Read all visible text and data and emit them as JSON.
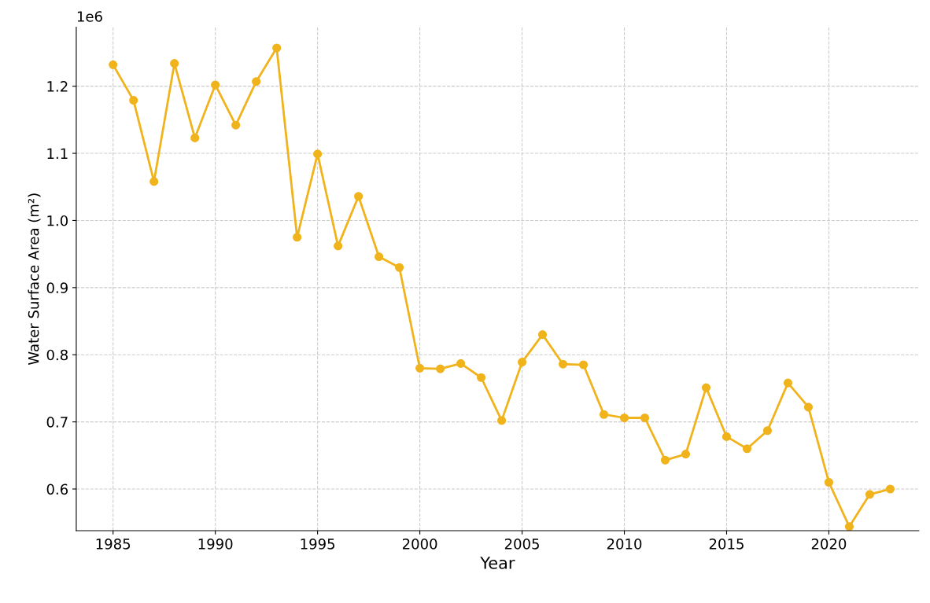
{
  "chart_data": {
    "type": "line",
    "xlabel": "Year",
    "ylabel": "Water Surface Area (m²)",
    "x": [
      1985,
      1986,
      1987,
      1988,
      1989,
      1990,
      1991,
      1992,
      1993,
      1994,
      1995,
      1996,
      1997,
      1998,
      1999,
      2000,
      2001,
      2002,
      2003,
      2004,
      2005,
      2006,
      2007,
      2008,
      2009,
      2010,
      2011,
      2012,
      2013,
      2014,
      2015,
      2016,
      2017,
      2018,
      2019,
      2020,
      2021,
      2022,
      2023
    ],
    "series": [
      {
        "color": "#f0b31c",
        "values": [
          1.232,
          1.179,
          1.058,
          1.234,
          1.123,
          1.202,
          1.142,
          1.207,
          1.257,
          0.975,
          1.099,
          0.962,
          1.036,
          0.946,
          0.93,
          0.78,
          0.779,
          0.787,
          0.766,
          0.702,
          0.789,
          0.83,
          0.786,
          0.785,
          0.711,
          0.706,
          0.706,
          0.643,
          0.652,
          0.751,
          0.678,
          0.66,
          0.687,
          0.758,
          0.722,
          0.61,
          0.544,
          0.592,
          0.6
        ]
      }
    ],
    "xlim": [
      1983.2,
      2024.4
    ],
    "ylim": [
      0.538,
      1.288
    ],
    "xticks": [
      1985,
      1990,
      1995,
      2000,
      2005,
      2010,
      2015,
      2020
    ],
    "yticks": [
      0.6,
      0.7,
      0.8,
      0.9,
      {
        "value": 1.0,
        "label": "1.0"
      },
      1.1,
      1.2
    ],
    "annotations": [
      "1e6"
    ],
    "grid": true,
    "marker": "circle",
    "line_style": "solid"
  }
}
